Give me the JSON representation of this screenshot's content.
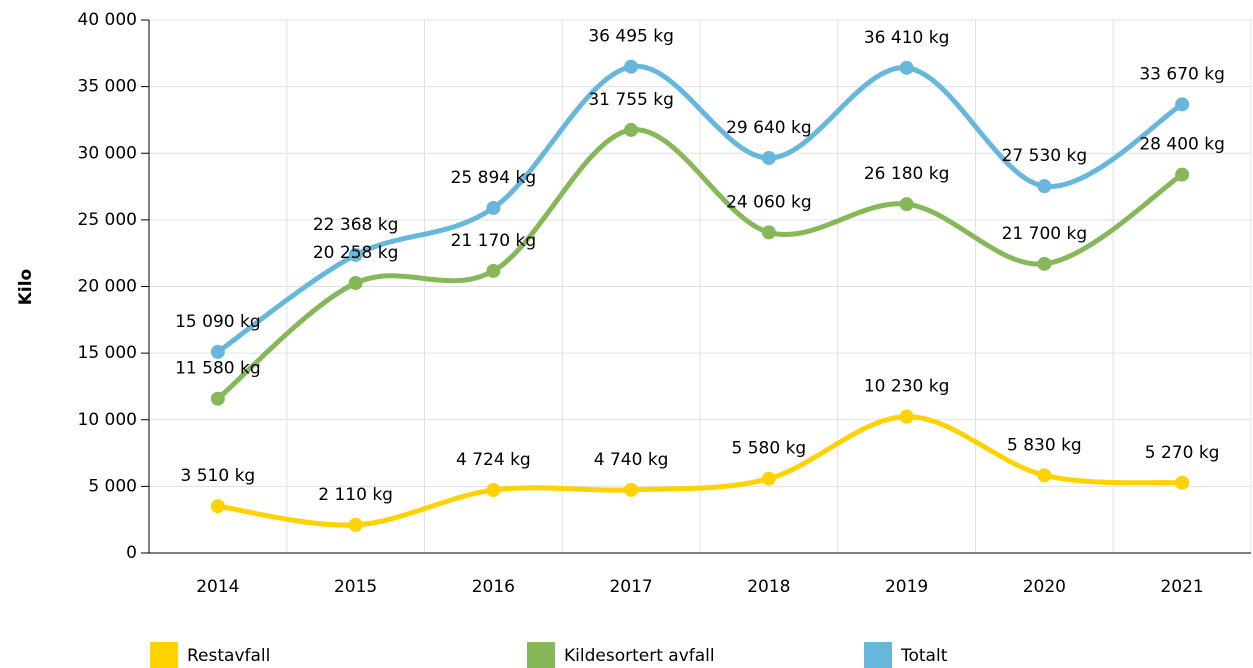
{
  "chart_data": {
    "type": "line",
    "y_label": "Kilo",
    "categories": [
      "2014",
      "2015",
      "2016",
      "2017",
      "2018",
      "2019",
      "2020",
      "2021"
    ],
    "series": [
      {
        "name": "Restavfall",
        "color": "#ffd200",
        "values": [
          3510,
          2110,
          4724,
          4740,
          5580,
          10230,
          5830,
          5270
        ],
        "value_labels": [
          "3 510 kg",
          "2 110 kg",
          "4 724 kg",
          "4 740 kg",
          "5 580 kg",
          "10 230 kg",
          "5 830 kg",
          "5 270 kg"
        ]
      },
      {
        "name": "Kildesortert avfall",
        "color": "#86b85a",
        "values": [
          11580,
          20258,
          21170,
          31755,
          24060,
          26180,
          21700,
          28400
        ],
        "value_labels": [
          "11 580 kg",
          "20 258 kg",
          "21 170 kg",
          "31 755 kg",
          "24 060 kg",
          "26 180 kg",
          "21 700 kg",
          "28 400 kg"
        ]
      },
      {
        "name": "Totalt",
        "color": "#67b7dc",
        "values": [
          15090,
          22368,
          25894,
          36495,
          29640,
          36410,
          27530,
          33670
        ],
        "value_labels": [
          "15 090 kg",
          "22 368 kg",
          "25 894 kg",
          "36 495 kg",
          "29 640 kg",
          "36 410 kg",
          "27 530 kg",
          "33 670 kg"
        ]
      }
    ],
    "ylim": [
      0,
      40000
    ],
    "yticks": [
      0,
      {
        "value": 5000,
        "label": "5 000"
      },
      {
        "value": 10000,
        "label": "10 000"
      },
      {
        "value": 15000,
        "label": "15 000"
      },
      {
        "value": 20000,
        "label": "20 000"
      },
      {
        "value": 25000,
        "label": "25 000"
      },
      {
        "value": 30000,
        "label": "30 000"
      },
      {
        "value": 35000,
        "label": "35 000"
      },
      {
        "value": 40000,
        "label": "40 000"
      }
    ],
    "grid": true
  }
}
